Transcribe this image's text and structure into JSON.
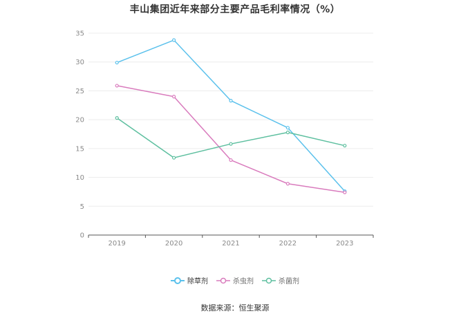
{
  "title": "丰山集团近年来部分主要产品毛利率情况（%）",
  "source": "数据来源：恒生聚源",
  "chart_data": {
    "type": "line",
    "title": "丰山集团近年来部分主要产品毛利率情况（%）",
    "x": [
      "2019",
      "2020",
      "2021",
      "2022",
      "2023"
    ],
    "ylim": [
      0,
      35
    ],
    "yticks": [
      0,
      5,
      10,
      15,
      20,
      25,
      30,
      35
    ],
    "grid": true,
    "legend_position": "bottom",
    "series": [
      {
        "name": "除草剂",
        "color": "#5bc1ec",
        "values": [
          29.9,
          33.8,
          23.3,
          18.6,
          7.6
        ]
      },
      {
        "name": "杀虫剂",
        "color": "#d97bbd",
        "values": [
          25.9,
          24.0,
          13.0,
          8.9,
          7.4
        ]
      },
      {
        "name": "杀菌剂",
        "color": "#5dbf9f",
        "values": [
          20.3,
          13.4,
          15.8,
          17.8,
          15.5
        ]
      }
    ]
  }
}
